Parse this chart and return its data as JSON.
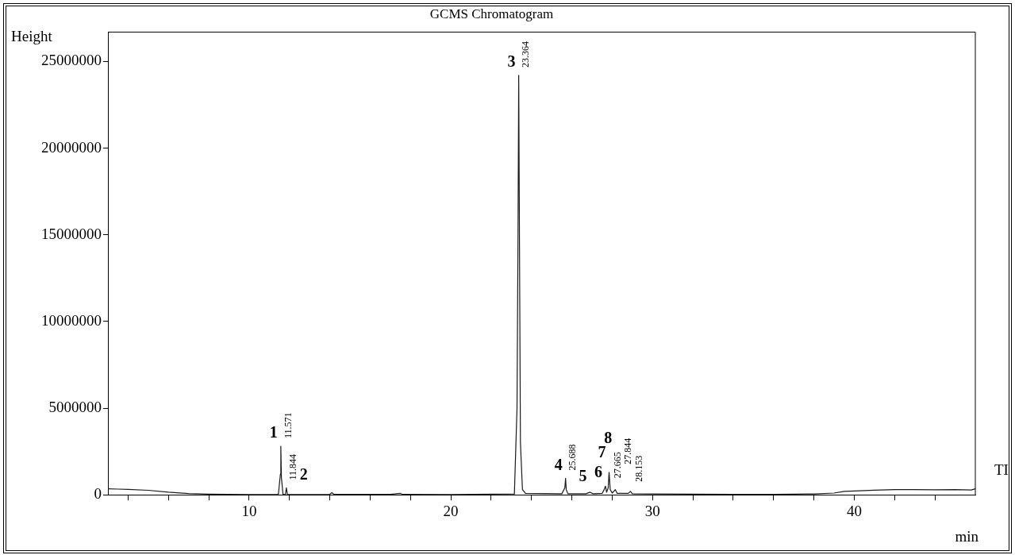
{
  "chart_data": {
    "type": "line",
    "title": "GCMS Chromatogram",
    "xlabel": "min",
    "ylabel": "Height",
    "x": [
      3,
      3.5,
      4,
      5,
      6,
      7,
      8,
      9,
      10,
      11,
      11.45,
      11.55,
      11.571,
      11.6,
      11.68,
      11.8,
      11.844,
      11.9,
      14,
      14.1,
      14.2,
      17,
      17.5,
      17.6,
      20,
      23.15,
      23.28,
      23.33,
      23.364,
      23.4,
      23.45,
      23.55,
      23.7,
      25.5,
      25.65,
      25.688,
      25.72,
      25.8,
      26.7,
      26.9,
      27.05,
      27.5,
      27.6,
      27.665,
      27.72,
      27.8,
      27.844,
      27.9,
      28,
      28.153,
      28.25,
      28.8,
      28.9,
      29,
      30,
      32,
      34,
      36,
      37,
      38,
      39,
      39.5,
      40,
      41,
      42,
      43,
      44,
      45,
      45.8,
      46
    ],
    "series": [
      {
        "color": "#1a1a1a",
        "values": [
          350000,
          330000,
          310000,
          260000,
          150000,
          70000,
          40000,
          30000,
          20000,
          20000,
          20000,
          1200000,
          2800000,
          1000000,
          20000,
          20000,
          400000,
          20000,
          30000,
          120000,
          30000,
          30000,
          80000,
          30000,
          20000,
          50000,
          5000000,
          15000000,
          24200000,
          15000000,
          3000000,
          300000,
          80000,
          60000,
          400000,
          950000,
          300000,
          60000,
          60000,
          150000,
          60000,
          80000,
          300000,
          500000,
          150000,
          400000,
          1300000,
          300000,
          100000,
          300000,
          80000,
          80000,
          200000,
          60000,
          50000,
          40000,
          30000,
          30000,
          40000,
          50000,
          100000,
          200000,
          220000,
          270000,
          300000,
          300000,
          290000,
          300000,
          280000,
          350000
        ],
        "name": null
      }
    ],
    "xlim": [
      3,
      46
    ],
    "xticks": [
      {
        "value": 4,
        "label": null
      },
      {
        "value": 6,
        "label": null
      },
      {
        "value": 8,
        "label": null
      },
      10,
      {
        "value": 12,
        "label": null
      },
      {
        "value": 14,
        "label": null
      },
      {
        "value": 16,
        "label": null
      },
      {
        "value": 18,
        "label": null
      },
      20,
      {
        "value": 22,
        "label": null
      },
      {
        "value": 24,
        "label": null
      },
      {
        "value": 26,
        "label": null
      },
      {
        "value": 28,
        "label": null
      },
      30,
      {
        "value": 32,
        "label": null
      },
      {
        "value": 34,
        "label": null
      },
      {
        "value": 36,
        "label": null
      },
      {
        "value": 38,
        "label": null
      },
      40,
      {
        "value": 42,
        "label": null
      },
      {
        "value": 44,
        "label": null
      }
    ],
    "ylim": [
      0,
      26700000
    ],
    "yticks": [
      0,
      5000000,
      10000000,
      15000000,
      20000000,
      25000000
    ],
    "grid": false,
    "legend": false,
    "marker": "none",
    "line_style": "solid",
    "annotations": [
      {
        "text": "1",
        "x": 11.571,
        "y": 2800000
      },
      {
        "text": "11.571",
        "x": 11.571,
        "y": 2800000
      },
      {
        "text": "2",
        "x": 11.844,
        "y": 400000
      },
      {
        "text": "11.844",
        "x": 11.844,
        "y": 400000
      },
      {
        "text": "3",
        "x": 23.364,
        "y": 24200000
      },
      {
        "text": "23.364",
        "x": 23.364,
        "y": 24200000
      },
      {
        "text": "4",
        "x": 25.688,
        "y": 950000
      },
      {
        "text": "25.688",
        "x": 25.688,
        "y": 950000
      },
      {
        "text": "5",
        "x": 26.9,
        "y": 150000
      },
      {
        "text": "6",
        "x": 27.665,
        "y": 500000
      },
      {
        "text": "27.665",
        "x": 27.665,
        "y": 500000
      },
      {
        "text": "7",
        "x": 27.844,
        "y": 1300000
      },
      {
        "text": "27.844",
        "x": 27.844,
        "y": 1300000
      },
      {
        "text": "8",
        "x": 28.153,
        "y": 300000
      },
      {
        "text": "28.153",
        "x": 28.153,
        "y": 300000
      },
      "TI"
    ]
  }
}
